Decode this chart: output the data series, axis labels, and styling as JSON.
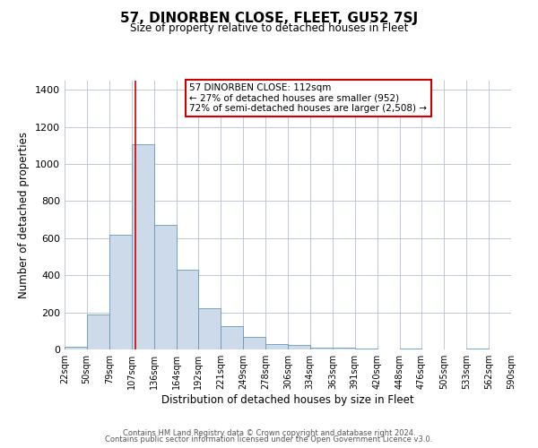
{
  "title": "57, DINORBEN CLOSE, FLEET, GU52 7SJ",
  "subtitle": "Size of property relative to detached houses in Fleet",
  "xlabel": "Distribution of detached houses by size in Fleet",
  "ylabel": "Number of detached properties",
  "bar_edges": [
    22,
    50,
    79,
    107,
    136,
    164,
    192,
    221,
    249,
    278,
    306,
    334,
    363,
    391,
    420,
    448,
    476,
    505,
    533,
    562,
    590
  ],
  "bar_heights": [
    15,
    190,
    620,
    1105,
    670,
    430,
    220,
    125,
    70,
    30,
    25,
    10,
    10,
    5,
    0,
    5,
    0,
    0,
    5,
    0
  ],
  "bar_color": "#ccdaea",
  "bar_edge_color": "#6699bb",
  "vline_x": 112,
  "vline_color": "#cc0000",
  "annotation_text": "57 DINORBEN CLOSE: 112sqm\n← 27% of detached houses are smaller (952)\n72% of semi-detached houses are larger (2,508) →",
  "annotation_box_color": "#ffffff",
  "annotation_box_edge_color": "#cc0000",
  "ylim": [
    0,
    1450
  ],
  "yticks": [
    0,
    200,
    400,
    600,
    800,
    1000,
    1200,
    1400
  ],
  "tick_labels": [
    "22sqm",
    "50sqm",
    "79sqm",
    "107sqm",
    "136sqm",
    "164sqm",
    "192sqm",
    "221sqm",
    "249sqm",
    "278sqm",
    "306sqm",
    "334sqm",
    "363sqm",
    "391sqm",
    "420sqm",
    "448sqm",
    "476sqm",
    "505sqm",
    "533sqm",
    "562sqm",
    "590sqm"
  ],
  "footer_line1": "Contains HM Land Registry data © Crown copyright and database right 2024.",
  "footer_line2": "Contains public sector information licensed under the Open Government Licence v3.0.",
  "background_color": "#ffffff",
  "grid_color": "#c0c8d8",
  "title_fontsize": 11,
  "subtitle_fontsize": 8.5,
  "ylabel_fontsize": 8.5,
  "xlabel_fontsize": 8.5,
  "tick_fontsize": 7,
  "annotation_fontsize": 7.5,
  "footer_fontsize": 6
}
